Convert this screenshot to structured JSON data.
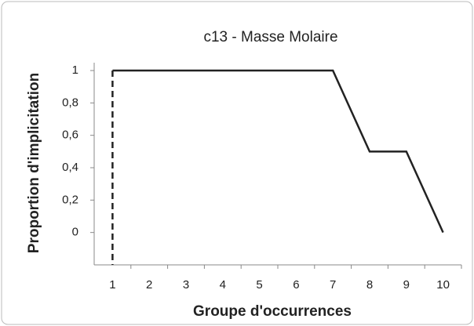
{
  "chart_data": {
    "type": "line",
    "title": "c13 - Masse Molaire",
    "x_label": "Groupe d'occurrences",
    "y_label": "Proportion d'implicitation",
    "x": [
      1,
      2,
      3,
      4,
      5,
      6,
      7,
      8,
      9,
      10
    ],
    "xlim": [
      0.5,
      10.5
    ],
    "xticks": [
      1,
      2,
      3,
      4,
      5,
      6,
      7,
      8,
      9,
      10
    ],
    "series": [
      {
        "color": "#222222",
        "values": [
          1,
          1,
          1,
          1,
          1,
          1,
          1,
          0.5,
          0.5,
          0
        ]
      }
    ],
    "ylim": [
      -0.2,
      1
    ],
    "yticks": [
      0,
      {
        "value": 0.2,
        "label": "0,2"
      },
      {
        "value": 0.4,
        "label": "0,4"
      },
      {
        "value": 0.6,
        "label": "0,6"
      },
      {
        "value": 0.8,
        "label": "0,8"
      },
      1
    ],
    "vline_x": 1,
    "grid": false
  }
}
